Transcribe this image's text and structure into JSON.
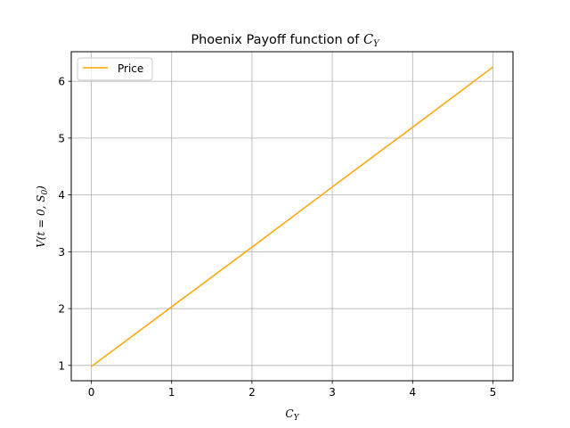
{
  "chart_data": {
    "type": "line",
    "title": "Phoenix Payoff function of",
    "title_math": "C",
    "title_math_sub": "Y",
    "xlabel_math": "C",
    "xlabel_math_sub": "Y",
    "ylabel_math": "V(t = 0, S",
    "ylabel_math_sub": "0",
    "ylabel_math_end": ")",
    "xlim": [
      -0.25,
      5.25
    ],
    "ylim": [
      0.73,
      6.52
    ],
    "xticks": [
      0,
      1,
      2,
      3,
      4,
      5
    ],
    "yticks": [
      1,
      2,
      3,
      4,
      5,
      6
    ],
    "grid": true,
    "legend_position": "top-left",
    "series": [
      {
        "name": "Price",
        "color": "#ffa500",
        "x": [
          0,
          1,
          2,
          3,
          4,
          5
        ],
        "y": [
          0.98,
          2.03,
          3.08,
          4.14,
          5.19,
          6.25
        ]
      }
    ]
  }
}
